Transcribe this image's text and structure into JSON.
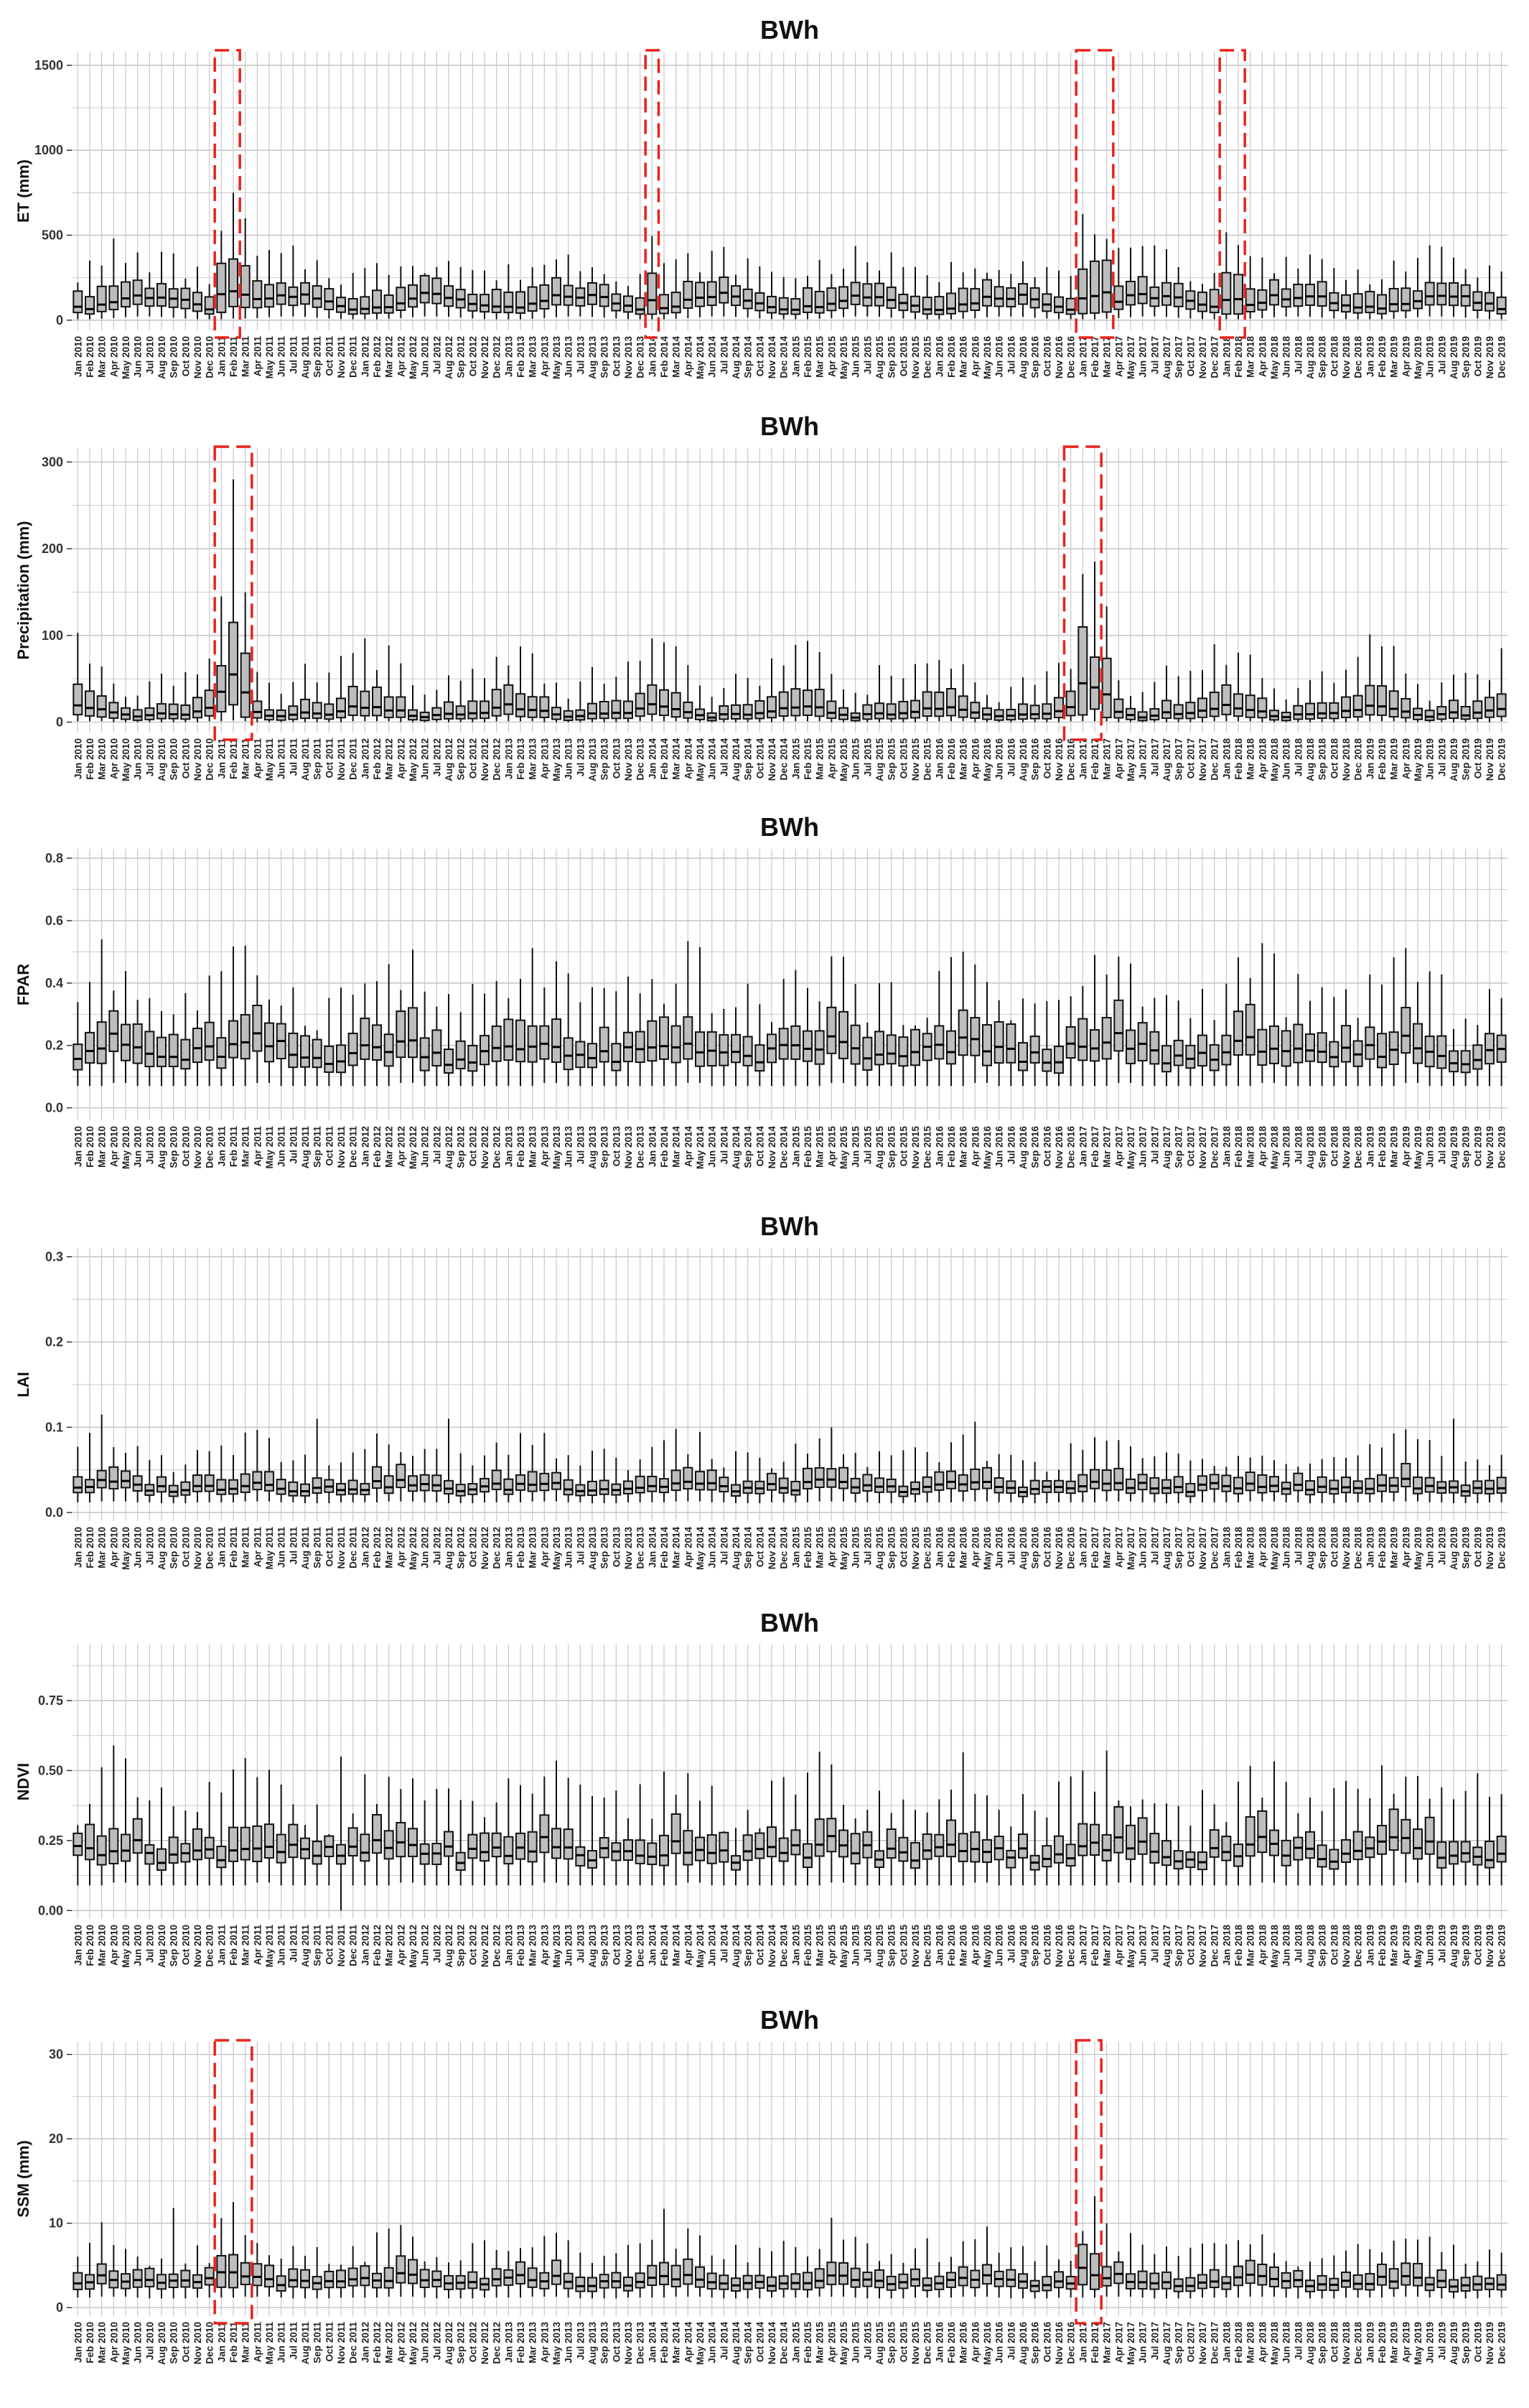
{
  "figure": {
    "months_start": "Jan 2010",
    "months_end": "Dec 2019",
    "month_labels": [
      "Jan 2010",
      "Feb 2010",
      "Mar 2010",
      "Apr 2010",
      "May 2010",
      "Jun 2010",
      "Jul 2010",
      "Aug 2010",
      "Sep 2010",
      "Oct 2010",
      "Nov 2010",
      "Dec 2010",
      "Jan 2011",
      "Feb 2011",
      "Mar 2011",
      "Apr 2011",
      "May 2011",
      "Jun 2011",
      "Jul 2011",
      "Aug 2011",
      "Sep 2011",
      "Oct 2011",
      "Nov 2011",
      "Dec 2011",
      "Jan 2012",
      "Feb 2012",
      "Mar 2012",
      "Apr 2012",
      "May 2012",
      "Jun 2012",
      "Jul 2012",
      "Aug 2012",
      "Sep 2012",
      "Oct 2012",
      "Nov 2012",
      "Dec 2012",
      "Jan 2013",
      "Feb 2013",
      "Mar 2013",
      "Apr 2013",
      "May 2013",
      "Jun 2013",
      "Jul 2013",
      "Aug 2013",
      "Sep 2013",
      "Oct 2013",
      "Nov 2013",
      "Dec 2013",
      "Jan 2014",
      "Feb 2014",
      "Mar 2014",
      "Apr 2014",
      "May 2014",
      "Jun 2014",
      "Jul 2014",
      "Aug 2014",
      "Sep 2014",
      "Oct 2014",
      "Nov 2014",
      "Dec 2014",
      "Jan 2015",
      "Feb 2015",
      "Mar 2015",
      "Apr 2015",
      "May 2015",
      "Jun 2015",
      "Jul 2015",
      "Aug 2015",
      "Sep 2015",
      "Oct 2015",
      "Nov 2015",
      "Dec 2015",
      "Jan 2016",
      "Feb 2016",
      "Mar 2016",
      "Apr 2016",
      "May 2016",
      "Jun 2016",
      "Jul 2016",
      "Aug 2016",
      "Sep 2016",
      "Oct 2016",
      "Nov 2016",
      "Dec 2016",
      "Jan 2017",
      "Feb 2017",
      "Mar 2017",
      "Apr 2017",
      "May 2017",
      "Jun 2017",
      "Jul 2017",
      "Aug 2017",
      "Sep 2017",
      "Oct 2017",
      "Nov 2017",
      "Dec 2017",
      "Jan 2018",
      "Feb 2018",
      "Mar 2018",
      "Apr 2018",
      "May 2018",
      "Jun 2018",
      "Jul 2018",
      "Aug 2018",
      "Sep 2018",
      "Oct 2018",
      "Nov 2018",
      "Dec 2018",
      "Jan 2019",
      "Feb 2019",
      "Mar 2019",
      "Apr 2019",
      "May 2019",
      "Jun 2019",
      "Jul 2019",
      "Aug 2019",
      "Sep 2019",
      "Oct 2019",
      "Nov 2019",
      "Dec 2019"
    ]
  },
  "colors": {
    "box_fill": "#bdbdbd",
    "box_stroke": "#111111",
    "median": "#000000",
    "grid": "#c8c8c8",
    "highlight": "#e8231b"
  },
  "chart_data": [
    {
      "type": "box",
      "title": "BWh",
      "ylabel": "ET (mm)",
      "ylim": [
        -60,
        1580
      ],
      "yticks": [
        0,
        500,
        1000,
        1500
      ],
      "decimals": 0,
      "base": {
        "median": [
          70,
          75,
          90,
          110,
          130,
          140,
          145,
          140,
          125,
          105,
          85,
          70
        ],
        "q1": [
          40,
          42,
          50,
          65,
          80,
          90,
          92,
          88,
          75,
          60,
          48,
          40
        ],
        "q3": [
          150,
          160,
          180,
          200,
          210,
          215,
          215,
          210,
          190,
          165,
          140,
          145
        ],
        "lo": [
          5,
          5,
          8,
          12,
          18,
          22,
          22,
          20,
          15,
          10,
          6,
          5
        ],
        "hi": [
          260,
          280,
          300,
          330,
          340,
          340,
          340,
          330,
          310,
          280,
          250,
          250
        ]
      },
      "highlight_months": [
        "Jan 2011",
        "Feb 2011",
        "Jan 2014",
        "Jan 2017",
        "Feb 2017",
        "Mar 2017",
        "Jan 2018",
        "Feb 2018"
      ],
      "highlight_scale": {
        "median": 1.9,
        "q3": 2.0,
        "hi": 1.9
      },
      "overrides": {
        "Feb 2011": {
          "median": 170,
          "q1": 80,
          "q3": 360,
          "lo": 10,
          "hi": 750
        },
        "Mar 2011": {
          "median": 150,
          "q1": 75,
          "q3": 320,
          "lo": 10,
          "hi": 600
        },
        "Apr 2010": {
          "hi": 480
        }
      },
      "highlight_boxes": [
        {
          "from": "Jan 2011",
          "to": "Feb 2011"
        },
        {
          "from": "Jan 2014",
          "to": "Jan 2014"
        },
        {
          "from": "Jan 2017",
          "to": "Mar 2017"
        },
        {
          "from": "Jan 2018",
          "to": "Feb 2018"
        }
      ]
    },
    {
      "type": "box",
      "title": "BWh",
      "ylabel": "Precipitation (mm)",
      "ylim": [
        -12,
        316
      ],
      "yticks": [
        0,
        100,
        200,
        300
      ],
      "decimals": 0,
      "base": {
        "median": [
          18,
          16,
          15,
          12,
          8,
          6,
          8,
          10,
          9,
          10,
          12,
          16
        ],
        "q1": [
          8,
          7,
          6,
          5,
          3,
          2,
          3,
          4,
          4,
          4,
          5,
          7
        ],
        "q3": [
          38,
          34,
          32,
          25,
          15,
          12,
          16,
          22,
          20,
          22,
          26,
          34
        ],
        "lo": [
          1,
          1,
          1,
          0,
          0,
          0,
          0,
          0,
          0,
          0,
          0,
          1
        ],
        "hi": [
          80,
          75,
          70,
          55,
          35,
          28,
          38,
          52,
          50,
          52,
          60,
          70
        ]
      },
      "highlight_months": [
        "Jan 2011",
        "Feb 2011",
        "Mar 2011",
        "Jan 2017",
        "Feb 2017",
        "Mar 2017"
      ],
      "highlight_scale": {
        "median": 2.4,
        "q3": 2.6,
        "hi": 1.9
      },
      "overrides": {
        "Feb 2011": {
          "median": 55,
          "q1": 20,
          "q3": 115,
          "lo": 2,
          "hi": 280
        },
        "Jan 2011": {
          "median": 35,
          "q1": 12,
          "q3": 65,
          "lo": 1,
          "hi": 145
        },
        "Feb 2017": {
          "median": 40,
          "q1": 15,
          "q3": 75,
          "lo": 1,
          "hi": 185
        }
      },
      "highlight_boxes": [
        {
          "from": "Jan 2011",
          "to": "Mar 2011"
        },
        {
          "from": "Dec 2016",
          "to": "Feb 2017"
        }
      ]
    },
    {
      "type": "box",
      "title": "BWh",
      "ylabel": "FPAR",
      "ylim": [
        -0.04,
        0.83
      ],
      "yticks": [
        0.0,
        0.2,
        0.4,
        0.6,
        0.8
      ],
      "decimals": 1,
      "base": {
        "median": [
          0.18,
          0.19,
          0.2,
          0.21,
          0.2,
          0.19,
          0.17,
          0.16,
          0.16,
          0.16,
          0.17,
          0.18
        ],
        "q1": [
          0.14,
          0.15,
          0.15,
          0.16,
          0.15,
          0.14,
          0.13,
          0.13,
          0.13,
          0.13,
          0.13,
          0.14
        ],
        "q3": [
          0.24,
          0.26,
          0.27,
          0.28,
          0.27,
          0.25,
          0.22,
          0.21,
          0.21,
          0.21,
          0.22,
          0.23
        ],
        "lo": [
          0.07,
          0.07,
          0.07,
          0.08,
          0.08,
          0.07,
          0.07,
          0.07,
          0.07,
          0.07,
          0.07,
          0.07
        ],
        "hi": [
          0.36,
          0.4,
          0.42,
          0.44,
          0.4,
          0.36,
          0.33,
          0.31,
          0.31,
          0.31,
          0.33,
          0.35
        ]
      },
      "highlight_months": [],
      "highlight_scale": {
        "median": 1,
        "q3": 1,
        "hi": 1
      },
      "overrides": {
        "Mar 2010": {
          "hi": 0.54
        },
        "Mar 2011": {
          "hi": 0.52
        },
        "Feb 2017": {
          "hi": 0.49
        }
      },
      "highlight_boxes": []
    },
    {
      "type": "box",
      "title": "BWh",
      "ylabel": "LAI",
      "ylim": [
        -0.01,
        0.31
      ],
      "yticks": [
        0.0,
        0.1,
        0.2,
        0.3
      ],
      "decimals": 1,
      "base": {
        "median": [
          0.03,
          0.032,
          0.034,
          0.035,
          0.033,
          0.031,
          0.029,
          0.028,
          0.028,
          0.028,
          0.029,
          0.03
        ],
        "q1": [
          0.024,
          0.025,
          0.026,
          0.027,
          0.026,
          0.024,
          0.023,
          0.022,
          0.022,
          0.022,
          0.023,
          0.024
        ],
        "q3": [
          0.04,
          0.043,
          0.046,
          0.048,
          0.045,
          0.041,
          0.038,
          0.036,
          0.036,
          0.036,
          0.038,
          0.04
        ],
        "lo": [
          0.012,
          0.012,
          0.013,
          0.013,
          0.013,
          0.012,
          0.012,
          0.011,
          0.011,
          0.011,
          0.012,
          0.012
        ],
        "hi": [
          0.065,
          0.072,
          0.078,
          0.082,
          0.075,
          0.066,
          0.06,
          0.058,
          0.058,
          0.058,
          0.06,
          0.064
        ]
      },
      "highlight_months": [],
      "highlight_scale": {
        "median": 1,
        "q3": 1,
        "hi": 1
      },
      "overrides": {
        "Mar 2010": {
          "hi": 0.115
        },
        "Sep 2011": {
          "hi": 0.11
        },
        "Aug 2012": {
          "hi": 0.11
        },
        "Aug 2019": {
          "hi": 0.11
        }
      },
      "highlight_boxes": []
    },
    {
      "type": "box",
      "title": "BWh",
      "ylabel": "NDVI",
      "ylim": [
        -0.03,
        0.95
      ],
      "yticks": [
        0.0,
        0.25,
        0.5,
        0.75
      ],
      "decimals": 2,
      "base": {
        "median": [
          0.21,
          0.22,
          0.23,
          0.24,
          0.23,
          0.22,
          0.21,
          0.2,
          0.2,
          0.2,
          0.2,
          0.21
        ],
        "q1": [
          0.18,
          0.18,
          0.19,
          0.19,
          0.19,
          0.18,
          0.17,
          0.17,
          0.17,
          0.17,
          0.17,
          0.18
        ],
        "q3": [
          0.26,
          0.28,
          0.3,
          0.31,
          0.29,
          0.27,
          0.25,
          0.24,
          0.24,
          0.24,
          0.25,
          0.26
        ],
        "lo": [
          0.09,
          0.09,
          0.09,
          0.1,
          0.1,
          0.09,
          0.09,
          0.09,
          0.09,
          0.09,
          0.09,
          0.09
        ],
        "hi": [
          0.38,
          0.42,
          0.44,
          0.46,
          0.42,
          0.38,
          0.35,
          0.34,
          0.34,
          0.34,
          0.36,
          0.38
        ]
      },
      "highlight_months": [],
      "highlight_scale": {
        "median": 1,
        "q3": 1,
        "hi": 1
      },
      "overrides": {
        "Apr 2010": {
          "hi": 0.59
        },
        "Nov 2011": {
          "lo": 0.0,
          "hi": 0.55
        },
        "Jan 2017": {
          "hi": 0.5
        },
        "Oct 2019": {
          "hi": 0.49
        }
      },
      "highlight_boxes": []
    },
    {
      "type": "box",
      "title": "BWh",
      "ylabel": "SSM (mm)",
      "ylim": [
        -1,
        31.5
      ],
      "yticks": [
        0,
        10,
        20,
        30
      ],
      "decimals": 0,
      "base": {
        "median": [
          3.2,
          3.4,
          3.5,
          3.6,
          3.4,
          3.1,
          2.9,
          2.8,
          2.8,
          2.9,
          3.0,
          3.1
        ],
        "q1": [
          2.4,
          2.5,
          2.6,
          2.6,
          2.5,
          2.3,
          2.2,
          2.1,
          2.1,
          2.2,
          2.3,
          2.4
        ],
        "q3": [
          4.2,
          4.5,
          4.8,
          5.0,
          4.6,
          4.1,
          3.8,
          3.6,
          3.6,
          3.8,
          3.9,
          4.1
        ],
        "lo": [
          1.2,
          1.2,
          1.3,
          1.3,
          1.3,
          1.2,
          1.1,
          1.1,
          1.1,
          1.1,
          1.2,
          1.2
        ],
        "hi": [
          6.5,
          7.2,
          7.8,
          8.2,
          7.4,
          6.5,
          6.0,
          5.8,
          5.8,
          6.0,
          6.2,
          6.4
        ]
      },
      "highlight_months": [
        "Jan 2011",
        "Feb 2011",
        "Jan 2017",
        "Feb 2017"
      ],
      "highlight_scale": {
        "median": 1.3,
        "q3": 1.5,
        "hi": 1.5
      },
      "overrides": {
        "Sep 2010": {
          "hi": 11.8
        },
        "Feb 2011": {
          "hi": 12.5
        },
        "Feb 2014": {
          "hi": 11.7
        },
        "Feb 2017": {
          "hi": 13.2
        }
      },
      "highlight_boxes": [
        {
          "from": "Jan 2011",
          "to": "Mar 2011"
        },
        {
          "from": "Jan 2017",
          "to": "Feb 2017"
        }
      ]
    }
  ]
}
